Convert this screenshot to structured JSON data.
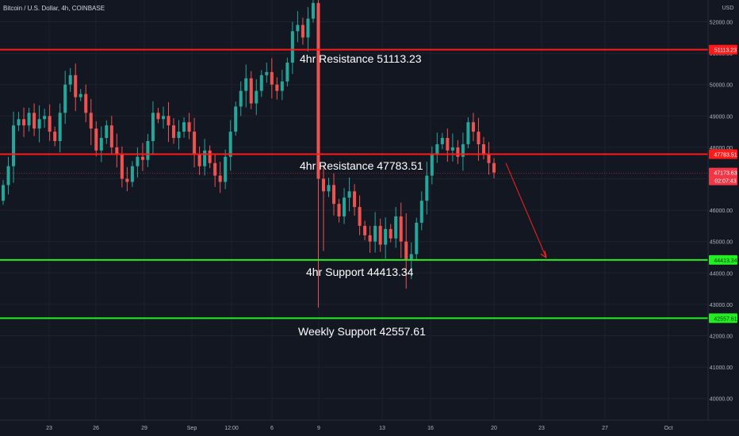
{
  "title": "Bitcoin / U.S. Dollar, 4h, COINBASE",
  "currency": "USD",
  "chart_data": {
    "type": "candlestick",
    "y_ticks": [
      40000,
      41000,
      42000,
      43000,
      44000,
      45000,
      46000,
      47000,
      48000,
      49000,
      50000,
      51000,
      52000
    ],
    "y_tick_labels": [
      "40000.00",
      "41000.00",
      "42000.00",
      "43000.00",
      "44000.00",
      "45000.00",
      "46000.00",
      "47000.00",
      "48000.00",
      "49000.00",
      "50000.00",
      "51000.00",
      "52000.00"
    ],
    "ylim": [
      39600,
      52700
    ],
    "x_ticks": [
      "23",
      "26",
      "29",
      "Sep",
      "12:00",
      "6",
      "9",
      "13",
      "16",
      "20",
      "23",
      "27",
      "Oct"
    ],
    "levels": [
      {
        "value": 51113.23,
        "label": "4hr Resistance 51113.23",
        "tag": "51113.23",
        "color": "#ff1a1a"
      },
      {
        "value": 47783.51,
        "label": "4hr Resistance 47783.51",
        "tag": "47783.51",
        "color": "#ff1a1a"
      },
      {
        "value": 44413.34,
        "label": "4hr Support 44413.34",
        "tag": "44413.34",
        "color": "#22ee22"
      },
      {
        "value": 42557.61,
        "label": "Weekly Support 42557.61",
        "tag": "42557.61",
        "color": "#22ee22"
      }
    ],
    "last_price": {
      "value": 47173.63,
      "label": "47173.63",
      "countdown": "02:07:43",
      "color": "#f23645"
    },
    "closes": [
      46800,
      47400,
      48700,
      48900,
      48700,
      49100,
      48600,
      48900,
      49000,
      48500,
      48200,
      49100,
      50000,
      50300,
      49600,
      49700,
      49100,
      48600,
      47900,
      48300,
      48700,
      48000,
      47800,
      47000,
      46900,
      47400,
      47700,
      47600,
      48200,
      49100,
      48900,
      49000,
      48700,
      48300,
      48500,
      48800,
      48500,
      47800,
      47400,
      47900,
      47500,
      47100,
      46900,
      47700,
      48500,
      49300,
      49800,
      50200,
      49400,
      49800,
      50300,
      50400,
      50000,
      49800,
      50100,
      50700,
      51700,
      51900,
      51500,
      52100,
      52600,
      47000,
      46600,
      46800,
      46200,
      45800,
      46400,
      46600,
      46100,
      45500,
      45200,
      45000,
      45500,
      44900,
      45400,
      45100,
      45800,
      45000,
      44400,
      44600,
      45600,
      46300,
      47100,
      47800,
      48100,
      48300,
      47900,
      48000,
      47700,
      48100,
      48800,
      48500,
      48100,
      47800,
      47500,
      47200
    ]
  }
}
